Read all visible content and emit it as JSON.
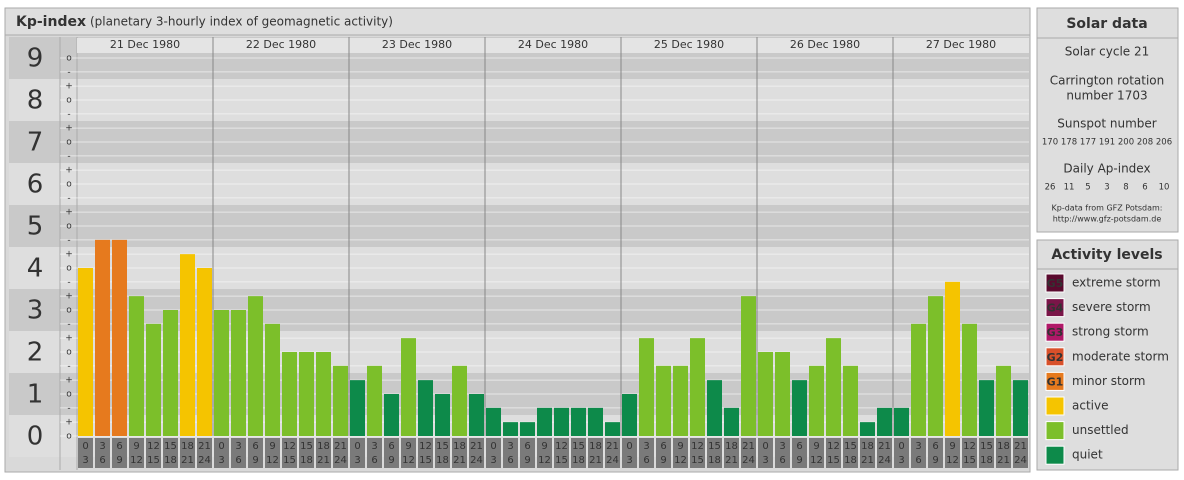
{
  "chart_data": {
    "type": "bar",
    "title": "Kp-index",
    "subtitle": "(planetary 3-hourly index of geomagnetic activity)",
    "days": [
      "21 Dec 1980",
      "22 Dec 1980",
      "23 Dec 1980",
      "24 Dec 1980",
      "25 Dec 1980",
      "26 Dec 1980",
      "27 Dec 1980"
    ],
    "hours": [
      [
        "0",
        "3"
      ],
      [
        "3",
        "6"
      ],
      [
        "6",
        "9"
      ],
      [
        "9",
        "12"
      ],
      [
        "12",
        "15"
      ],
      [
        "15",
        "18"
      ],
      [
        "18",
        "21"
      ],
      [
        "21",
        "24"
      ]
    ],
    "values": [
      4,
      4.67,
      4.67,
      3.33,
      2.67,
      3,
      4.33,
      4,
      3,
      3,
      3.33,
      2.67,
      2,
      2,
      2,
      1.67,
      1.33,
      1.67,
      1,
      2.33,
      1.33,
      1,
      1.67,
      1,
      0.67,
      0.33,
      0.33,
      0.67,
      0.67,
      0.67,
      0.67,
      0.33,
      1,
      2.33,
      1.67,
      1.67,
      2.33,
      1.33,
      0.67,
      3.33,
      2,
      2,
      1.33,
      1.67,
      2.33,
      1.67,
      0.33,
      0.67,
      0.67,
      2.67,
      3.33,
      3.67,
      2.67,
      1.33,
      1.67,
      1.33
    ],
    "colors": [
      "#f5c400",
      "#e67a1e",
      "#e67a1e",
      "#7cbf2a",
      "#7cbf2a",
      "#7cbf2a",
      "#f5c400",
      "#f5c400",
      "#7cbf2a",
      "#7cbf2a",
      "#7cbf2a",
      "#7cbf2a",
      "#7cbf2a",
      "#7cbf2a",
      "#7cbf2a",
      "#7cbf2a",
      "#0d8a4a",
      "#7cbf2a",
      "#0d8a4a",
      "#7cbf2a",
      "#0d8a4a",
      "#0d8a4a",
      "#7cbf2a",
      "#0d8a4a",
      "#0d8a4a",
      "#0d8a4a",
      "#0d8a4a",
      "#0d8a4a",
      "#0d8a4a",
      "#0d8a4a",
      "#0d8a4a",
      "#0d8a4a",
      "#0d8a4a",
      "#7cbf2a",
      "#7cbf2a",
      "#7cbf2a",
      "#7cbf2a",
      "#0d8a4a",
      "#0d8a4a",
      "#7cbf2a",
      "#7cbf2a",
      "#7cbf2a",
      "#0d8a4a",
      "#7cbf2a",
      "#7cbf2a",
      "#7cbf2a",
      "#0d8a4a",
      "#0d8a4a",
      "#0d8a4a",
      "#7cbf2a",
      "#7cbf2a",
      "#f5c400",
      "#7cbf2a",
      "#0d8a4a",
      "#7cbf2a",
      "#0d8a4a"
    ],
    "ylim": [
      -0.5,
      9.5
    ],
    "yticks": [
      0,
      1,
      2,
      3,
      4,
      5,
      6,
      7,
      8,
      9
    ],
    "subticks": [
      {
        "value": 0,
        "label": "o"
      },
      {
        "value": 0.33,
        "label": "+"
      },
      {
        "value": 0.67,
        "label": "-"
      },
      {
        "value": 1,
        "label": "o"
      },
      {
        "value": 1.33,
        "label": "+"
      },
      {
        "value": 1.67,
        "label": "-"
      },
      {
        "value": 2,
        "label": "o"
      },
      {
        "value": 2.33,
        "label": "+"
      },
      {
        "value": 2.67,
        "label": "-"
      },
      {
        "value": 3,
        "label": "o"
      },
      {
        "value": 3.33,
        "label": "+"
      },
      {
        "value": 3.67,
        "label": "-"
      },
      {
        "value": 4,
        "label": "o"
      },
      {
        "value": 4.33,
        "label": "+"
      },
      {
        "value": 4.67,
        "label": "-"
      },
      {
        "value": 5,
        "label": "o"
      },
      {
        "value": 5.33,
        "label": "+"
      },
      {
        "value": 5.67,
        "label": "-"
      },
      {
        "value": 6,
        "label": "o"
      },
      {
        "value": 6.33,
        "label": "+"
      },
      {
        "value": 6.67,
        "label": "-"
      },
      {
        "value": 7,
        "label": "o"
      },
      {
        "value": 7.33,
        "label": "+"
      },
      {
        "value": 7.67,
        "label": "-"
      },
      {
        "value": 8,
        "label": "o"
      },
      {
        "value": 8.33,
        "label": "+"
      },
      {
        "value": 8.67,
        "label": "-"
      },
      {
        "value": 9,
        "label": "o"
      }
    ],
    "grid": true
  },
  "solar_data": {
    "title": "Solar data",
    "cycle": "Solar cycle 21",
    "carrington": [
      "Carrington rotation",
      "number 1703"
    ],
    "sunspot_title": "Sunspot number",
    "sunspot": [
      170,
      178,
      177,
      191,
      200,
      208,
      206
    ],
    "ap_title": "Daily Ap-index",
    "ap": [
      26,
      11,
      5,
      3,
      8,
      6,
      10
    ],
    "source": [
      "Kp-data from GFZ Potsdam:",
      "http://www.gfz-potsdam.de"
    ]
  },
  "activity_levels": {
    "title": "Activity levels",
    "items": [
      {
        "badge": "G5",
        "label": "extreme storm",
        "color": "#5a0a2e"
      },
      {
        "badge": "G4",
        "label": "severe storm",
        "color": "#7a1548"
      },
      {
        "badge": "G3",
        "label": "strong storm",
        "color": "#b01868"
      },
      {
        "badge": "G2",
        "label": "moderate storm",
        "color": "#d8502a"
      },
      {
        "badge": "G1",
        "label": "minor storm",
        "color": "#e67a1e"
      },
      {
        "label": "active",
        "color": "#f5c400"
      },
      {
        "label": "unsettled",
        "color": "#7cbf2a"
      },
      {
        "label": "quiet",
        "color": "#0d8a4a"
      }
    ]
  }
}
